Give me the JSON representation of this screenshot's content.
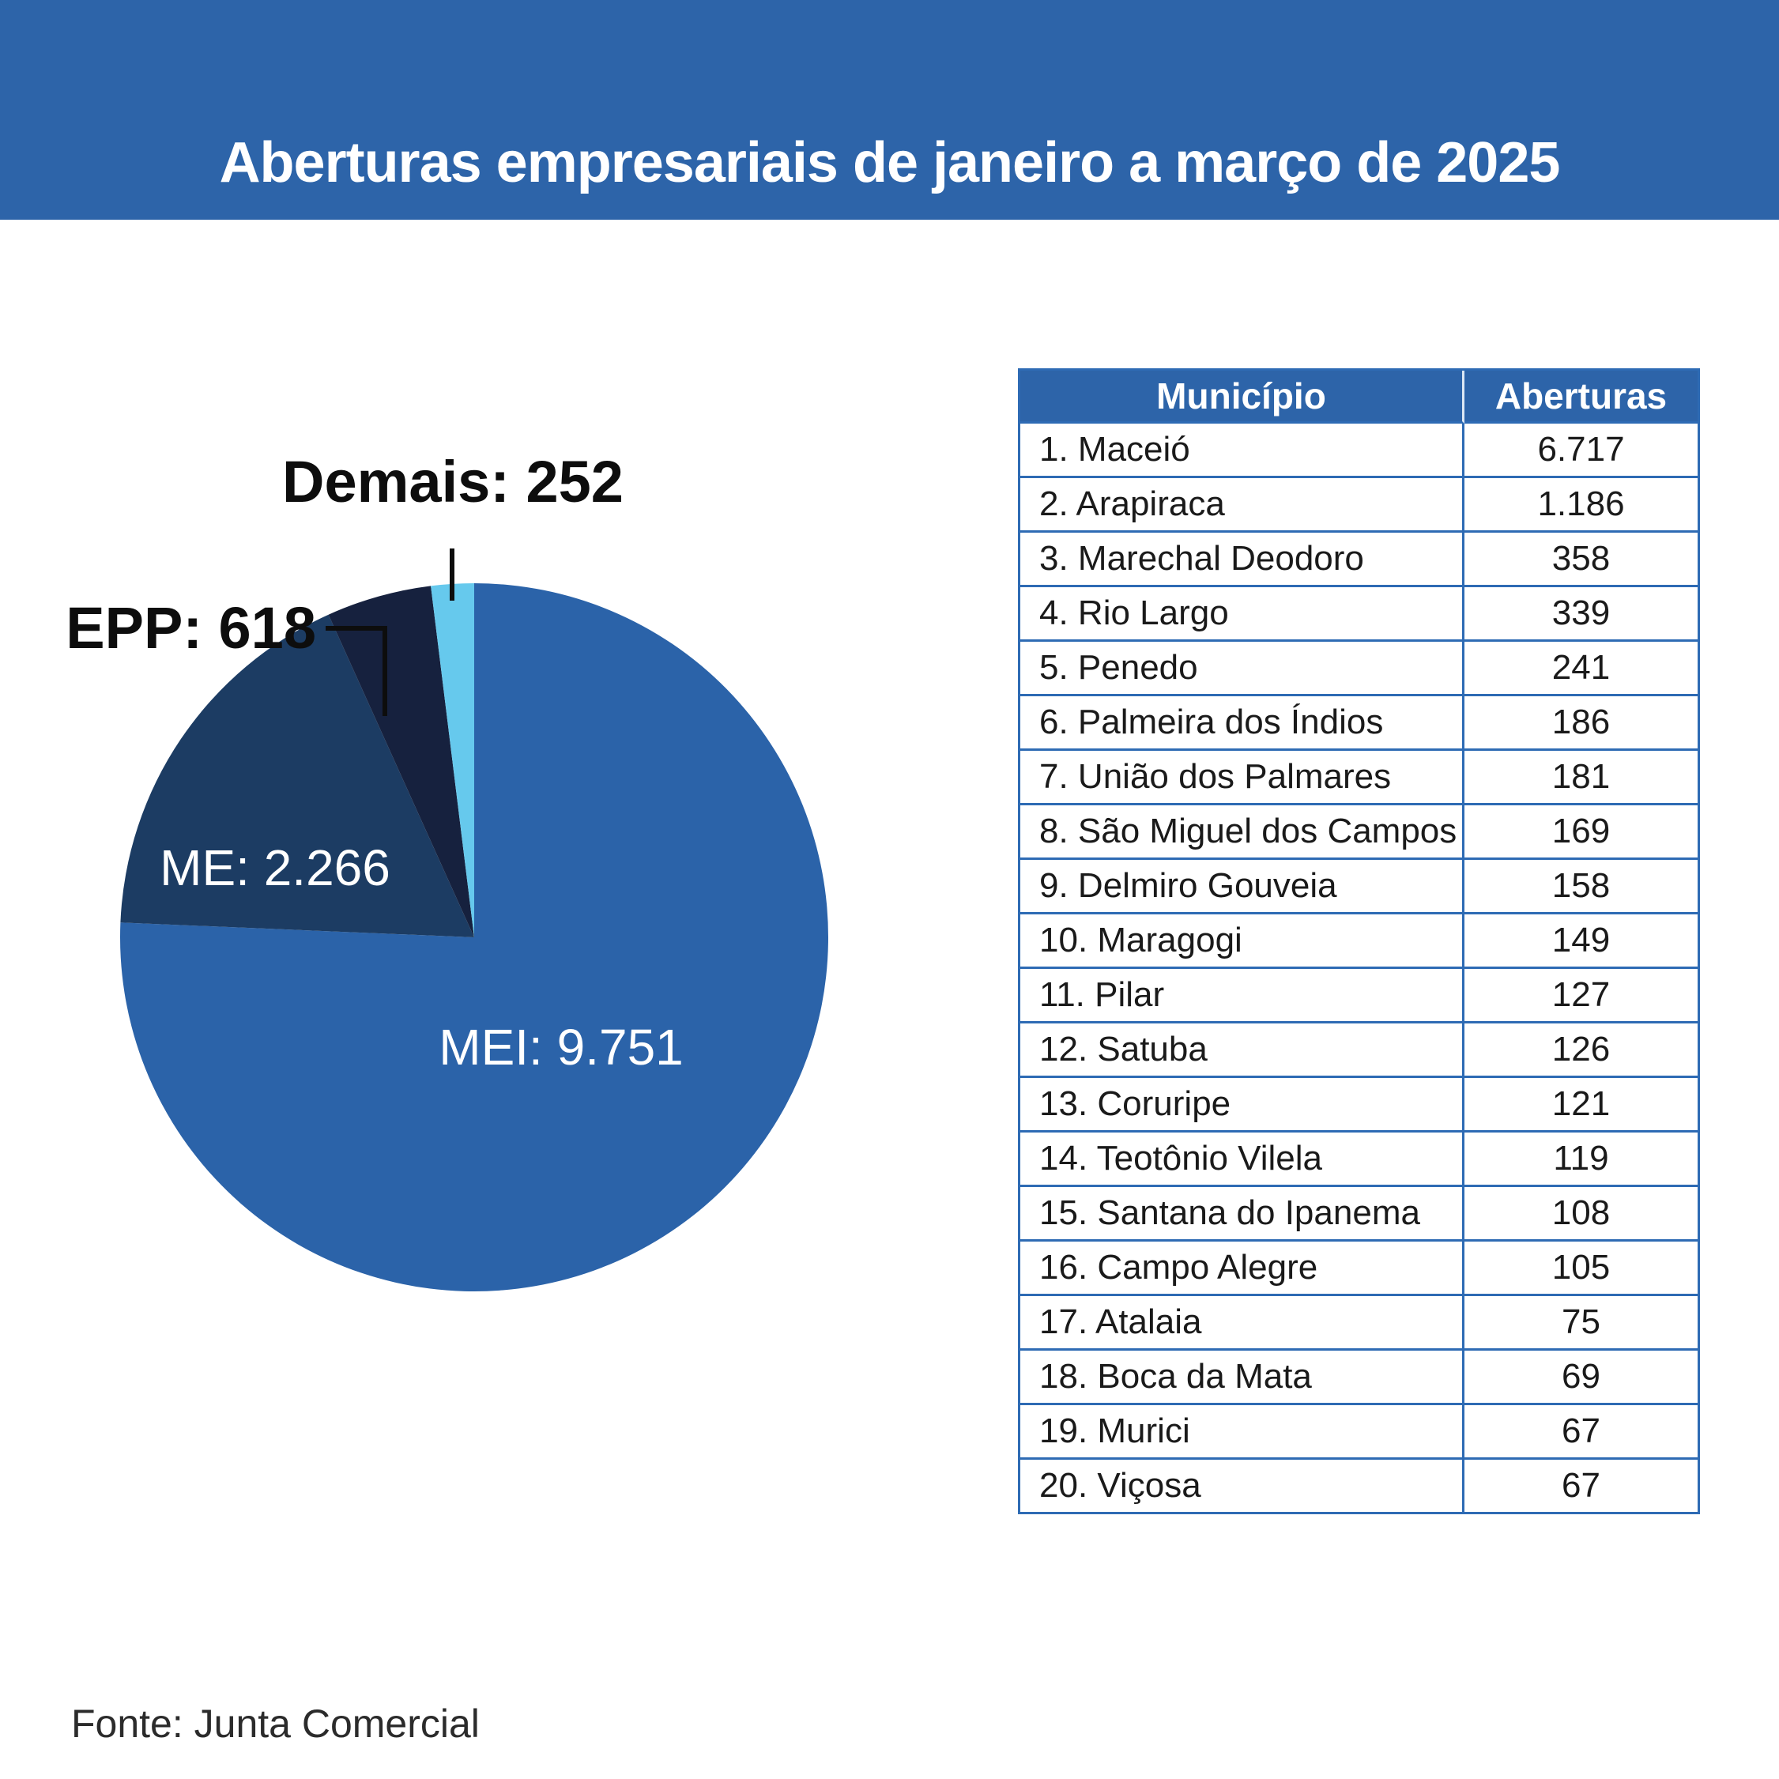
{
  "header": {
    "title": "Aberturas empresariais de janeiro a março de 2025",
    "bg_color": "#2D64A9",
    "title_color": "#FFFFFF"
  },
  "chart_data": {
    "type": "pie",
    "title": "Aberturas empresariais de janeiro a março de 2025",
    "direction": "clockwise",
    "start_angle_deg": 0,
    "legend_position": "none",
    "categories": [
      "MEI",
      "ME",
      "EPP",
      "Demais"
    ],
    "values": [
      9751,
      2266,
      618,
      252
    ],
    "series": [
      {
        "name": "MEI",
        "value": 9751,
        "display": "MEI: 9.751",
        "color": "#2B63A9",
        "label_color": "#FFFFFF",
        "label_placement": "inside"
      },
      {
        "name": "ME",
        "value": 2266,
        "display": "ME: 2.266",
        "color": "#1C3C63",
        "label_color": "#FFFFFF",
        "label_placement": "inside"
      },
      {
        "name": "EPP",
        "value": 618,
        "display": "EPP: 618",
        "color": "#16213E",
        "label_color": "#0D0D0D",
        "label_placement": "outside"
      },
      {
        "name": "Demais",
        "value": 252,
        "display": "Demais: 252",
        "color": "#66C9ED",
        "label_color": "#0D0D0D",
        "label_placement": "outside"
      }
    ]
  },
  "table": {
    "columns": [
      "Município",
      "Aberturas"
    ],
    "header_bg": "#2D64A9",
    "border_color": "#2E6BB4",
    "rows": [
      [
        "1. Maceió",
        "6.717"
      ],
      [
        "2. Arapiraca",
        "1.186"
      ],
      [
        "3. Marechal Deodoro",
        "358"
      ],
      [
        "4. Rio Largo",
        "339"
      ],
      [
        "5. Penedo",
        "241"
      ],
      [
        "6. Palmeira dos Índios",
        "186"
      ],
      [
        "7. União dos Palmares",
        "181"
      ],
      [
        "8. São Miguel dos Campos",
        "169"
      ],
      [
        "9. Delmiro Gouveia",
        "158"
      ],
      [
        "10. Maragogi",
        "149"
      ],
      [
        "11. Pilar",
        "127"
      ],
      [
        "12. Satuba",
        "126"
      ],
      [
        "13. Coruripe",
        "121"
      ],
      [
        "14. Teotônio Vilela",
        "119"
      ],
      [
        "15. Santana do Ipanema",
        "108"
      ],
      [
        "16. Campo Alegre",
        "105"
      ],
      [
        "17. Atalaia",
        "75"
      ],
      [
        "18. Boca da Mata",
        "69"
      ],
      [
        "19. Murici",
        "67"
      ],
      [
        "20. Viçosa",
        "67"
      ]
    ]
  },
  "footer": {
    "source": "Fonte: Junta Comercial"
  }
}
